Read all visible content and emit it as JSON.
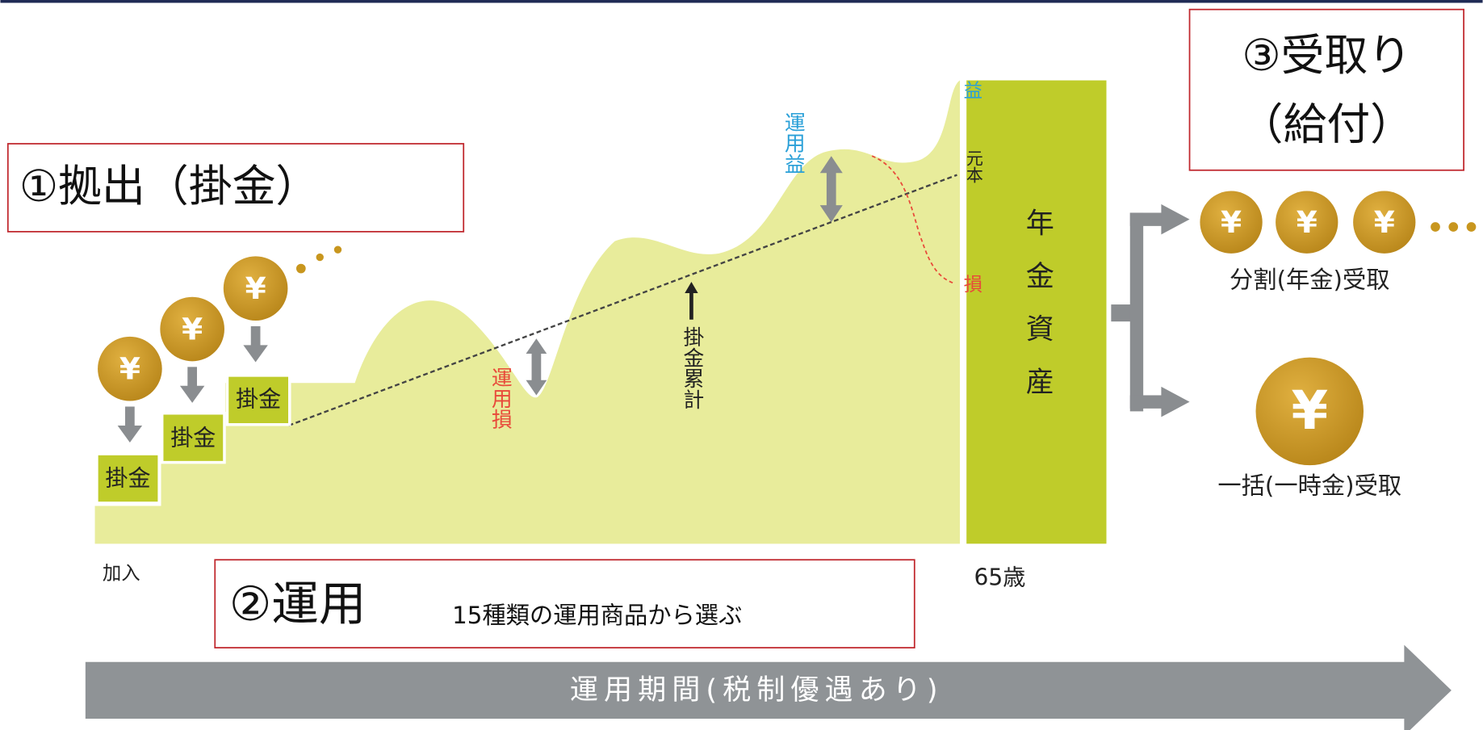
{
  "steps": {
    "contribution": "①拠出（掛金）",
    "investment": "②運用",
    "investment_note": "15種類の運用商品から選ぶ",
    "receipt_line1": "③受取り",
    "receipt_line2": "（給付）"
  },
  "coin": "¥",
  "premium": "掛金",
  "labels": {
    "gain": "運用益",
    "loss": "運用損",
    "cumulative": "掛金累計",
    "principal": "元本",
    "gain_short": "益",
    "loss_short": "損",
    "pension_assets": "年金資産",
    "join": "加入",
    "age": "65歳"
  },
  "options": {
    "installment": "分割(年金)受取",
    "lump_sum": "一括(一時金)受取"
  },
  "period": "運用期間(税制優遇あり)"
}
